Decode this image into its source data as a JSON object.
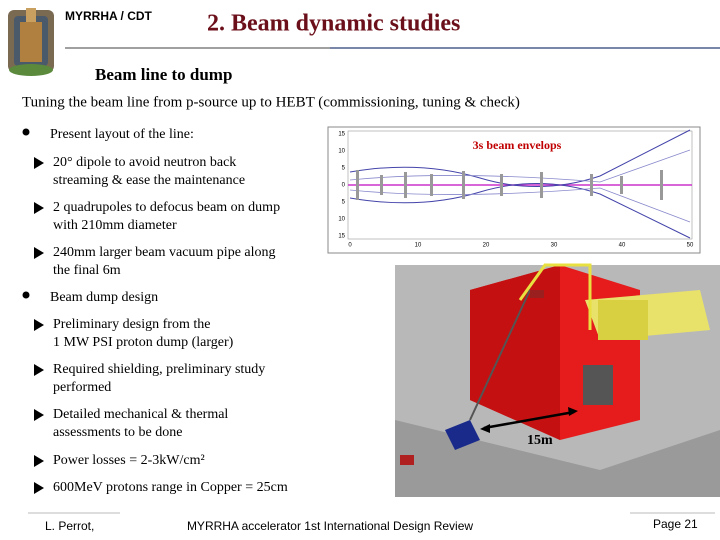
{
  "header": {
    "org": "MYRRHA / CDT",
    "title": "2. Beam dynamic studies",
    "subtitle": "Beam line to dump"
  },
  "intro": "Tuning the beam line from p-source up to  HEBT (commissioning, tuning & check)",
  "bullets": [
    {
      "text": "Present layout of the line:",
      "items": [
        [
          "20° dipole to avoid neutron back",
          "streaming & ease the maintenance"
        ],
        [
          "2 quadrupoles to defocus beam on dump",
          "with 210mm diameter"
        ],
        [
          "240mm larger beam vacuum pipe along",
          "the final 6m"
        ]
      ]
    },
    {
      "text": "Beam dump design",
      "items": [
        [
          "Preliminary design from the",
          "1 MW PSI proton dump (larger)"
        ],
        [
          "Required shielding, preliminary study",
          "performed"
        ],
        [
          "Detailed mechanical & thermal",
          "assessments to be done"
        ],
        [
          "Power losses = 2-3kW/cm²"
        ],
        [
          "600MeV protons range in Copper = 25cm"
        ]
      ]
    }
  ],
  "figures": {
    "plot_label": "3s beam envelops",
    "plot_xticks": [
      "0",
      "10",
      "20",
      "30",
      "40",
      "50"
    ],
    "plot_yticks": [
      "15",
      "10",
      "5",
      "0",
      "5",
      "10",
      "15"
    ],
    "dump_label": "15m"
  },
  "footer": {
    "author": "L. Perrot,",
    "event": "MYRRHA accelerator 1st International Design Review",
    "page": "Page 21"
  }
}
